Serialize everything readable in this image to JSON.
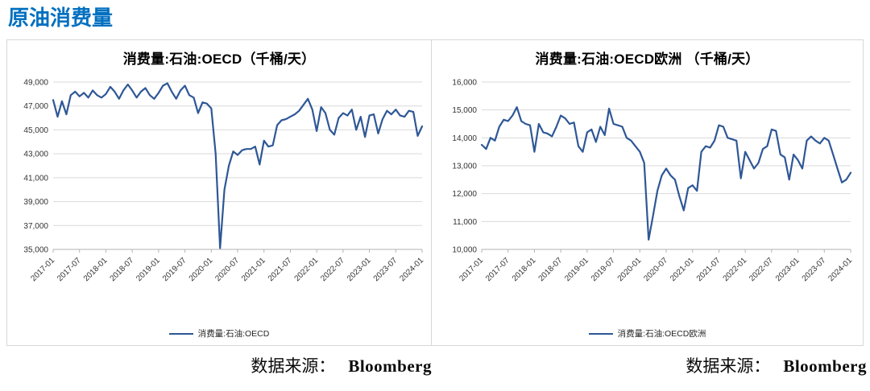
{
  "page": {
    "title": "原油消费量",
    "title_color": "#0070C0"
  },
  "style": {
    "grid_color": "#d9d9d9",
    "axis_color": "#b3b3b3",
    "tick_text_color": "#333333",
    "line_color": "#2E5796"
  },
  "chart_data": [
    {
      "type": "line",
      "title": "消费量:石油:OECD（千桶/天）",
      "legend": "消费量:石油:OECD",
      "x_start": "2017-01",
      "x_freq": "monthly",
      "x_tick_every": 6,
      "x_ticks": [
        "2017-01",
        "2017-07",
        "2018-01",
        "2018-07",
        "2019-01",
        "2019-07",
        "2020-01",
        "2020-07",
        "2021-01",
        "2021-07",
        "2022-01",
        "2022-07",
        "2023-01",
        "2023-07",
        "2024-01"
      ],
      "ylim": [
        35000,
        49000
      ],
      "ytick_step": 2000,
      "grid": true,
      "legend_position": "bottom",
      "line_color": "#2E5796",
      "values": [
        47500,
        46100,
        47400,
        46300,
        47900,
        48200,
        47800,
        48100,
        47700,
        48300,
        47900,
        47700,
        48000,
        48600,
        48200,
        47600,
        48300,
        48800,
        48300,
        47700,
        48200,
        48500,
        47900,
        47600,
        48100,
        48700,
        48900,
        48200,
        47600,
        48300,
        48700,
        47900,
        47700,
        46400,
        47300,
        47200,
        46800,
        43000,
        35100,
        40000,
        42000,
        43200,
        42900,
        43300,
        43400,
        43400,
        43600,
        42100,
        44100,
        43600,
        43700,
        45400,
        45800,
        45900,
        46100,
        46300,
        46600,
        47100,
        47600,
        46700,
        44900,
        46900,
        46400,
        45000,
        44600,
        46000,
        46400,
        46200,
        46700,
        45000,
        46100,
        44400,
        46200,
        46300,
        44700,
        45900,
        46600,
        46300,
        46700,
        46200,
        46100,
        46600,
        46500,
        44500,
        45300
      ]
    },
    {
      "type": "line",
      "title": "消费量:石油:OECD欧洲 （千桶/天）",
      "legend": "消费量:石油:OECD欧洲",
      "x_start": "2017-01",
      "x_freq": "monthly",
      "x_tick_every": 6,
      "x_ticks": [
        "2017-01",
        "2017-07",
        "2018-01",
        "2018-07",
        "2019-01",
        "2019-07",
        "2020-01",
        "2020-07",
        "2021-01",
        "2021-07",
        "2022-01",
        "2022-07",
        "2023-01",
        "2023-07",
        "2024-01"
      ],
      "ylim": [
        10000,
        16000
      ],
      "ytick_step": 1000,
      "grid": true,
      "legend_position": "bottom",
      "line_color": "#2E5796",
      "values": [
        13750,
        13600,
        14000,
        13900,
        14400,
        14650,
        14600,
        14800,
        15100,
        14600,
        14500,
        14450,
        13500,
        14500,
        14200,
        14150,
        14050,
        14400,
        14800,
        14700,
        14500,
        14550,
        13700,
        13500,
        14200,
        14300,
        13850,
        14400,
        14100,
        15050,
        14500,
        14450,
        14400,
        14000,
        13900,
        13700,
        13500,
        13100,
        10350,
        11200,
        12100,
        12650,
        12900,
        12650,
        12500,
        11900,
        11400,
        12200,
        12300,
        12100,
        13500,
        13700,
        13650,
        13900,
        14450,
        14400,
        14000,
        13950,
        13900,
        12550,
        13500,
        13200,
        12900,
        13100,
        13600,
        13700,
        14300,
        14250,
        13400,
        13300,
        12500,
        13400,
        13200,
        12900,
        13900,
        14050,
        13900,
        13800,
        14000,
        13900,
        13400,
        12900,
        12400,
        12500,
        12750
      ]
    }
  ],
  "sources": [
    {
      "prefix": "数据来源：",
      "name": "Bloomberg"
    },
    {
      "prefix": "数据来源：",
      "name": "Bloomberg"
    }
  ]
}
